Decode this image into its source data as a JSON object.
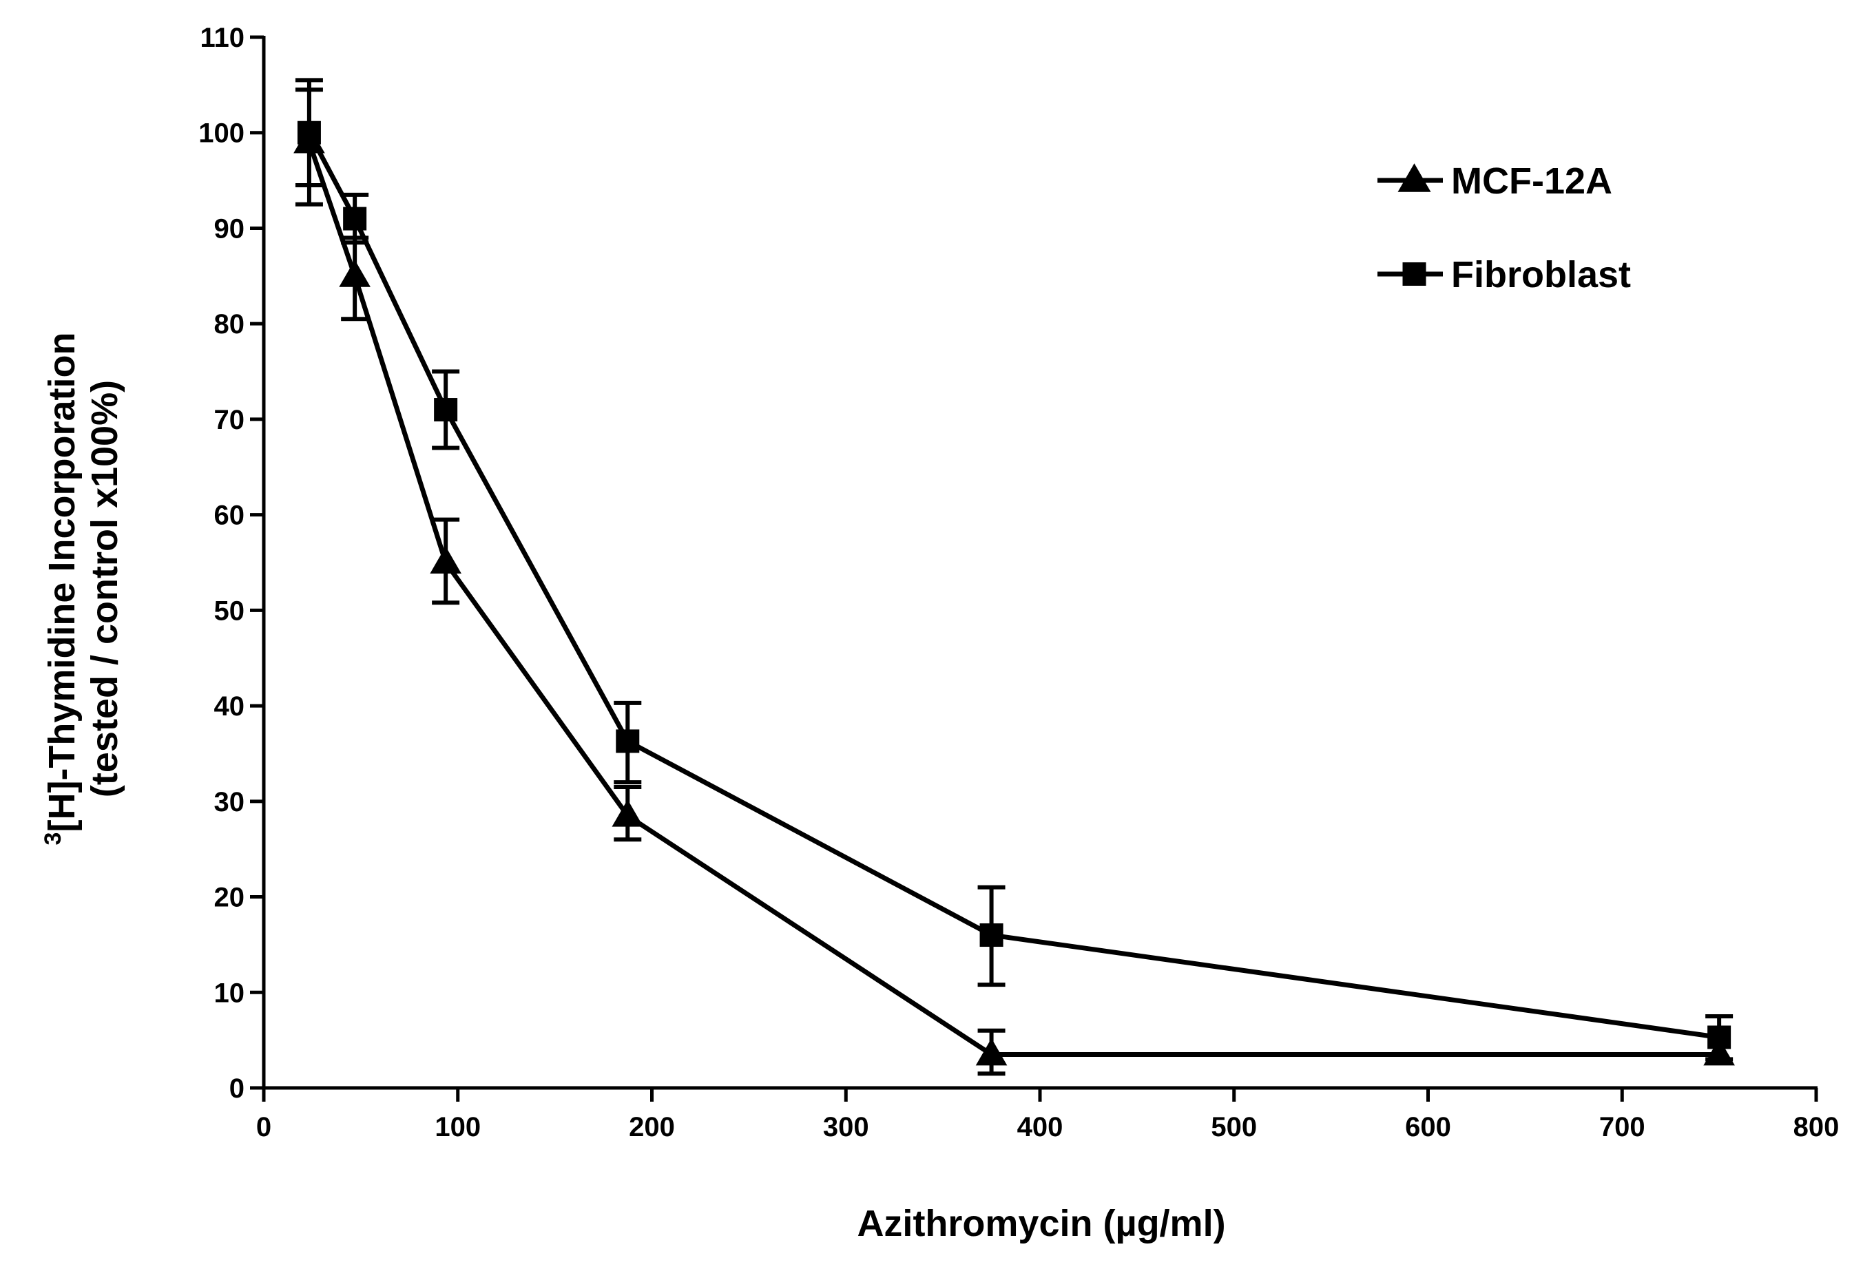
{
  "chart_data": {
    "type": "line",
    "title": "",
    "xlabel": "Azithromycin (µg/ml)",
    "ylabel_sup": "3",
    "ylabel_line1": "[H]-Thymidine Incorporation",
    "ylabel_line2": "(tested / control x100%)",
    "xlim": [
      0,
      800
    ],
    "ylim": [
      0,
      110
    ],
    "xticks": [
      "0",
      "100",
      "200",
      "300",
      "400",
      "500",
      "600",
      "700",
      "800"
    ],
    "yticks": [
      "0",
      "10",
      "20",
      "30",
      "40",
      "50",
      "60",
      "70",
      "80",
      "90",
      "100",
      "110"
    ],
    "grid": false,
    "legend_position": "top-right",
    "series": [
      {
        "name": "MCF-12A",
        "marker": "triangle",
        "x": [
          23.4,
          46.9,
          93.75,
          187.5,
          375,
          750
        ],
        "values": [
          99,
          85,
          55,
          28.5,
          3.5,
          3.5
        ],
        "err_upper": [
          104.5,
          89,
          59.5,
          31.5,
          6,
          3.5
        ],
        "err_lower": [
          92.5,
          80.5,
          50.8,
          26,
          1.5,
          3.5
        ]
      },
      {
        "name": "Fibroblast",
        "marker": "square",
        "x": [
          23.4,
          46.9,
          93.75,
          187.5,
          375,
          750
        ],
        "values": [
          100,
          91,
          71,
          36.3,
          16,
          5.3
        ],
        "err_upper": [
          105.5,
          93.5,
          75,
          40.3,
          21,
          7.5
        ],
        "err_lower": [
          94.5,
          88.5,
          67,
          32,
          10.8,
          3
        ]
      }
    ]
  },
  "colors": {
    "line": "#000000",
    "background": "#ffffff"
  }
}
